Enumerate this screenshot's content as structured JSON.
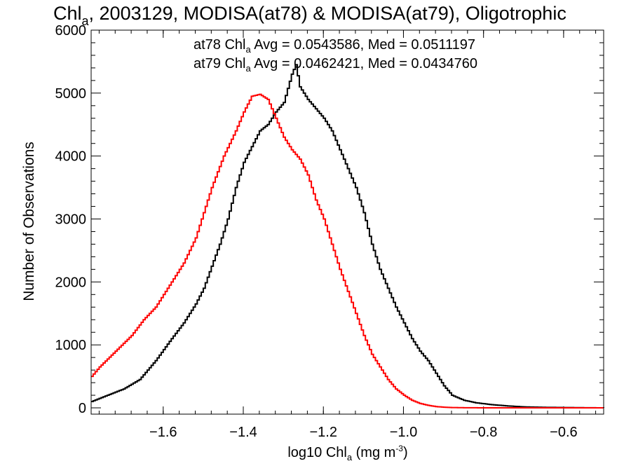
{
  "chart_data": {
    "type": "line",
    "title": {
      "prefix": "Chl",
      "sub": "a",
      "suffix": ", 2003129, MODISA(at78) & MODISA(at79), Oligotrophic"
    },
    "xlabel": {
      "prefix": "log10 Chl",
      "sub": "a",
      "mid": " (mg m",
      "sup": "-3",
      "suffix": ")"
    },
    "ylabel": "Number of Observations",
    "xlim": [
      -1.78,
      -0.5
    ],
    "ylim": [
      -100,
      6000
    ],
    "xticks": [
      -1.6,
      -1.4,
      -1.2,
      -1.0,
      -0.8,
      -0.6
    ],
    "xtick_labels": [
      "−1.6",
      "−1.4",
      "−1.2",
      "−1.0",
      "−0.8",
      "−0.6"
    ],
    "yticks": [
      0,
      1000,
      2000,
      3000,
      4000,
      5000,
      6000
    ],
    "ytick_labels": [
      "0",
      "1000",
      "2000",
      "3000",
      "4000",
      "5000",
      "6000"
    ],
    "grid": false,
    "series": [
      {
        "name": "at78",
        "color": "#000000",
        "stats": {
          "prefix": "at78 Chl",
          "sub": "a",
          "text": " Avg = 0.0543586, Med = 0.0511197"
        },
        "x": [
          -1.78,
          -1.74,
          -1.7,
          -1.66,
          -1.62,
          -1.58,
          -1.55,
          -1.52,
          -1.5,
          -1.48,
          -1.46,
          -1.44,
          -1.42,
          -1.4,
          -1.38,
          -1.36,
          -1.34,
          -1.32,
          -1.3,
          -1.28,
          -1.27,
          -1.26,
          -1.24,
          -1.22,
          -1.2,
          -1.18,
          -1.16,
          -1.14,
          -1.12,
          -1.1,
          -1.08,
          -1.06,
          -1.04,
          -1.02,
          -1.0,
          -0.98,
          -0.96,
          -0.94,
          -0.92,
          -0.9,
          -0.88,
          -0.85,
          -0.82,
          -0.78,
          -0.74,
          -0.7,
          -0.65,
          -0.6,
          -0.55,
          -0.5
        ],
        "y": [
          100,
          200,
          300,
          450,
          750,
          1100,
          1350,
          1650,
          1900,
          2250,
          2600,
          3000,
          3500,
          3900,
          4150,
          4400,
          4500,
          4700,
          4850,
          5300,
          5450,
          5100,
          4900,
          4750,
          4600,
          4400,
          4100,
          3800,
          3500,
          3100,
          2600,
          2200,
          1900,
          1600,
          1350,
          1100,
          900,
          750,
          550,
          350,
          200,
          120,
          80,
          50,
          30,
          15,
          8,
          5,
          2,
          0
        ]
      },
      {
        "name": "at79",
        "color": "#ff0000",
        "stats": {
          "prefix": "at79 Chl",
          "sub": "a",
          "text": " Avg = 0.0462421, Med = 0.0434760"
        },
        "x": [
          -1.78,
          -1.76,
          -1.72,
          -1.68,
          -1.65,
          -1.62,
          -1.6,
          -1.58,
          -1.55,
          -1.52,
          -1.5,
          -1.48,
          -1.45,
          -1.42,
          -1.4,
          -1.38,
          -1.36,
          -1.34,
          -1.32,
          -1.3,
          -1.28,
          -1.26,
          -1.24,
          -1.22,
          -1.2,
          -1.18,
          -1.16,
          -1.14,
          -1.12,
          -1.1,
          -1.08,
          -1.06,
          -1.04,
          -1.02,
          -1.0,
          -0.98,
          -0.96,
          -0.94,
          -0.92,
          -0.9,
          -0.88,
          -0.85,
          -0.82,
          -0.78,
          -0.74,
          -0.7,
          -0.65,
          -0.6,
          -0.55,
          -0.5
        ],
        "y": [
          500,
          650,
          900,
          1150,
          1400,
          1600,
          1800,
          2000,
          2300,
          2700,
          3100,
          3500,
          4000,
          4400,
          4700,
          4950,
          4980,
          4900,
          4600,
          4300,
          4100,
          3950,
          3700,
          3300,
          3000,
          2600,
          2200,
          1850,
          1500,
          1150,
          850,
          650,
          450,
          300,
          200,
          120,
          70,
          40,
          20,
          10,
          5,
          2,
          1,
          0,
          0,
          0,
          0,
          0,
          0,
          0
        ]
      }
    ]
  }
}
